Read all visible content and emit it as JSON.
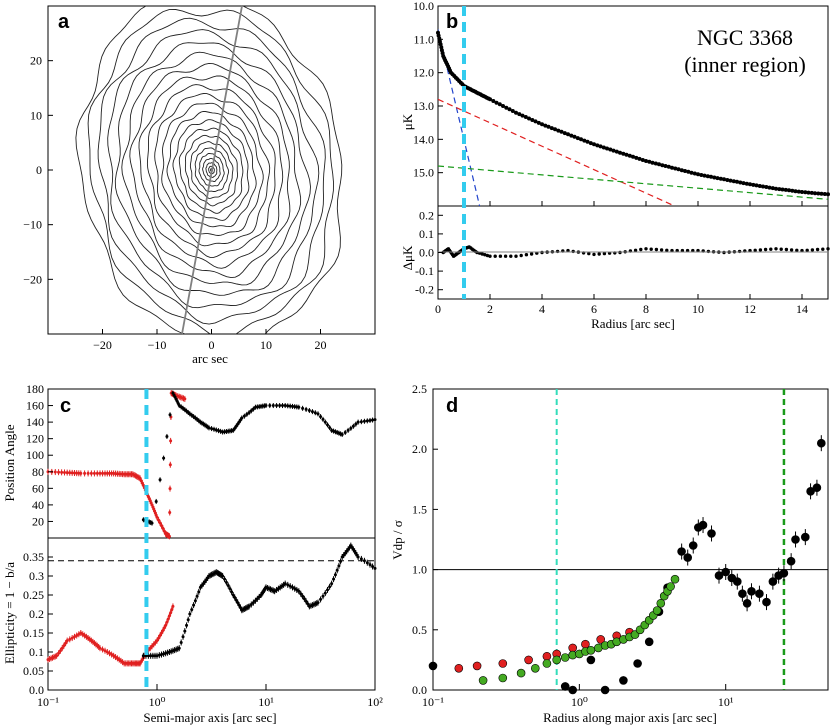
{
  "colors": {
    "cyan": "#33ccee",
    "red": "#e02020",
    "green": "#1a9a1a",
    "blue": "#2244cc",
    "gray": "#808080",
    "green_pts": "#44aa22"
  },
  "chart_data": [
    {
      "panel": "a",
      "type": "contour",
      "xlabel": "arc sec",
      "xlim": [
        -30,
        30
      ],
      "ylim": [
        -30,
        30
      ],
      "xticks": [
        -20,
        -10,
        0,
        10,
        20
      ],
      "yticks": [
        20,
        10,
        0,
        -10,
        -20
      ],
      "contour_count": 22,
      "major_axis_line": "slightly tilted line through center"
    },
    {
      "panel": "b",
      "type": "line",
      "title": "NGC 3368",
      "subtitle": "(inner region)",
      "xlabel": "Radius [arc sec]",
      "ylabel": "μK",
      "xlim": [
        0,
        15
      ],
      "ylim": [
        16.0,
        10.0
      ],
      "xticks": [
        0,
        2,
        4,
        6,
        8,
        10,
        12,
        14
      ],
      "yticks": [
        10.0,
        11.0,
        12.0,
        13.0,
        14.0,
        15.0
      ],
      "profile": {
        "x": [
          0,
          0.2,
          0.5,
          1.0,
          1.5,
          2,
          3,
          4,
          5,
          6,
          7,
          8,
          9,
          10,
          11,
          12,
          13,
          14,
          15
        ],
        "y": [
          10.8,
          11.5,
          12.0,
          12.4,
          12.6,
          12.8,
          13.2,
          13.55,
          13.85,
          14.15,
          14.4,
          14.65,
          14.85,
          15.05,
          15.2,
          15.35,
          15.48,
          15.58,
          15.65
        ]
      },
      "component_fits": [
        {
          "name": "blue",
          "x": [
            0,
            1.6
          ],
          "y": [
            10.7,
            16.0
          ]
        },
        {
          "name": "red",
          "x": [
            0,
            9.1
          ],
          "y": [
            12.8,
            16.0
          ]
        },
        {
          "name": "green",
          "x": [
            0,
            15
          ],
          "y": [
            14.8,
            15.8
          ]
        }
      ],
      "vline_x": 1.0,
      "residual": {
        "ylabel": "ΔμK",
        "ylim": [
          -0.25,
          0.25
        ],
        "yticks": [
          0.2,
          0.1,
          0.0,
          -0.1,
          -0.2
        ],
        "x": [
          0.2,
          0.4,
          0.6,
          0.8,
          1.0,
          1.2,
          1.5,
          2,
          3,
          4,
          5,
          6,
          7,
          8,
          9,
          10,
          11,
          12,
          13,
          14,
          15
        ],
        "y": [
          0.0,
          0.02,
          -0.02,
          0.0,
          0.02,
          0.03,
          0.0,
          -0.02,
          -0.02,
          0.0,
          0.01,
          -0.01,
          0.0,
          0.02,
          0.01,
          0.01,
          0.0,
          0.01,
          0.02,
          0.01,
          0.02
        ]
      }
    },
    {
      "panel": "c",
      "type": "line",
      "xlabel": "Semi-major axis [arc sec]",
      "xlim": [
        0.1,
        100
      ],
      "xscale": "log",
      "xticks": [
        "10⁻¹",
        "10⁰",
        "10¹",
        "10²"
      ],
      "vline_x": 0.8,
      "position_angle": {
        "ylabel": "Position Angle",
        "ylim": [
          0,
          180
        ],
        "yticks": [
          180,
          160,
          140,
          120,
          100,
          80,
          60,
          40,
          20
        ],
        "black": {
          "x": [
            0.75,
            0.9,
            1.4,
            1.6,
            2.0,
            2.5,
            3,
            4,
            5,
            6,
            8,
            10,
            15,
            20,
            30,
            40,
            50,
            70,
            100
          ],
          "y": [
            22,
            18,
            175,
            160,
            150,
            140,
            133,
            128,
            130,
            145,
            158,
            160,
            160,
            158,
            150,
            130,
            125,
            140,
            143
          ]
        },
        "red": {
          "x": [
            0.1,
            0.15,
            0.2,
            0.3,
            0.4,
            0.5,
            0.6,
            0.7,
            0.8,
            0.9,
            1.0,
            1.2,
            1.3,
            1.35,
            1.5,
            1.8
          ],
          "y": [
            80,
            79,
            78,
            78,
            78,
            77,
            77,
            72,
            55,
            40,
            25,
            5,
            2,
            175,
            172,
            168
          ]
        }
      },
      "ellipticity": {
        "ylabel": "Ellipticity = 1 − b/a",
        "ylim": [
          0,
          0.4
        ],
        "yticks": [
          0.35,
          0.3,
          0.25,
          0.2,
          0.15,
          0.1,
          0.05,
          0.0
        ],
        "dashed_level": 0.34,
        "black": {
          "x": [
            0.75,
            1.0,
            1.3,
            1.6,
            2.0,
            2.5,
            3,
            3.5,
            4,
            5,
            6,
            7,
            9,
            10,
            12,
            15,
            20,
            25,
            30,
            40,
            50,
            60,
            70,
            100
          ],
          "y": [
            0.09,
            0.09,
            0.1,
            0.11,
            0.2,
            0.27,
            0.3,
            0.31,
            0.3,
            0.25,
            0.21,
            0.22,
            0.25,
            0.27,
            0.26,
            0.28,
            0.26,
            0.22,
            0.23,
            0.28,
            0.35,
            0.38,
            0.35,
            0.32
          ]
        },
        "red": {
          "x": [
            0.1,
            0.12,
            0.15,
            0.2,
            0.25,
            0.3,
            0.4,
            0.5,
            0.6,
            0.7,
            0.8,
            1.0,
            1.2,
            1.4
          ],
          "y": [
            0.08,
            0.09,
            0.13,
            0.15,
            0.13,
            0.11,
            0.09,
            0.07,
            0.07,
            0.07,
            0.1,
            0.13,
            0.17,
            0.22
          ]
        }
      }
    },
    {
      "panel": "d",
      "type": "scatter",
      "xlabel": "Radius along major axis [arc sec]",
      "ylabel": "Vdp / σ",
      "xlim": [
        0.1,
        50
      ],
      "xscale": "log",
      "ylim": [
        0,
        2.5
      ],
      "xticks": [
        "10⁻¹",
        "10⁰",
        "10¹"
      ],
      "yticks": [
        2.5,
        2.0,
        1.5,
        1.0,
        0.5,
        0.0
      ],
      "hline_y": 1.0,
      "vlines": [
        {
          "x": 0.7,
          "color": "cyan"
        },
        {
          "x": 25,
          "color": "green"
        }
      ],
      "series": [
        {
          "name": "black",
          "x": [
            0.1,
            0.8,
            0.9,
            1.2,
            1.5,
            2.0,
            2.5,
            3.0,
            3.5,
            4,
            5,
            5.5,
            6,
            6.5,
            7,
            8,
            9,
            10,
            11,
            12,
            13,
            14,
            15,
            17,
            19,
            21,
            23,
            25,
            28,
            30,
            35,
            38,
            42,
            45
          ],
          "y": [
            0.2,
            0.03,
            0.0,
            0.25,
            0.0,
            0.08,
            0.22,
            0.4,
            0.65,
            0.85,
            1.15,
            1.1,
            1.2,
            1.35,
            1.37,
            1.3,
            0.95,
            0.98,
            0.93,
            0.9,
            0.8,
            0.72,
            0.82,
            0.8,
            0.73,
            0.9,
            0.95,
            0.97,
            1.07,
            1.25,
            1.27,
            1.65,
            1.68,
            2.05
          ]
        },
        {
          "name": "red",
          "x": [
            0.15,
            0.2,
            0.3,
            0.45,
            0.6,
            0.7,
            0.9,
            1.1,
            1.4,
            1.8,
            2.2
          ],
          "y": [
            0.18,
            0.2,
            0.22,
            0.25,
            0.28,
            0.3,
            0.35,
            0.38,
            0.42,
            0.45,
            0.48
          ]
        },
        {
          "name": "green",
          "x": [
            0.22,
            0.3,
            0.4,
            0.5,
            0.6,
            0.7,
            0.8,
            0.9,
            1.0,
            1.1,
            1.2,
            1.35,
            1.5,
            1.65,
            1.8,
            2.0,
            2.2,
            2.4,
            2.6,
            2.8,
            3.0,
            3.2,
            3.4,
            3.6,
            3.8,
            4.0,
            4.2,
            4.5
          ],
          "y": [
            0.08,
            0.1,
            0.14,
            0.18,
            0.22,
            0.25,
            0.27,
            0.29,
            0.3,
            0.32,
            0.33,
            0.35,
            0.37,
            0.38,
            0.4,
            0.42,
            0.44,
            0.46,
            0.5,
            0.54,
            0.58,
            0.62,
            0.66,
            0.72,
            0.78,
            0.82,
            0.86,
            0.92
          ]
        }
      ]
    }
  ],
  "labels": {
    "a": "a",
    "b": "b",
    "c": "c",
    "d": "d"
  },
  "tick_text": {
    "a_x": [
      "−20",
      "−10",
      "0",
      "10",
      "20"
    ],
    "a_y": [
      "20",
      "10",
      "0",
      "−10",
      "−20"
    ],
    "b_x": [
      "0",
      "2",
      "4",
      "6",
      "8",
      "10",
      "12",
      "14"
    ],
    "b_y": [
      "10.0",
      "11.0",
      "12.0",
      "13.0",
      "14.0",
      "15.0"
    ],
    "b_res_y": [
      "0.2",
      "0.1",
      "0.0",
      "-0.1",
      "-0.2"
    ],
    "c_pa_y": [
      "180",
      "160",
      "140",
      "120",
      "100",
      "80",
      "60",
      "40",
      "20"
    ],
    "c_el_y": [
      "0.35",
      "0.3",
      "0.25",
      "0.2",
      "0.15",
      "0.1",
      "0.05",
      "0.0"
    ],
    "d_y": [
      "2.5",
      "2.0",
      "1.5",
      "1.0",
      "0.5",
      "0.0"
    ]
  }
}
